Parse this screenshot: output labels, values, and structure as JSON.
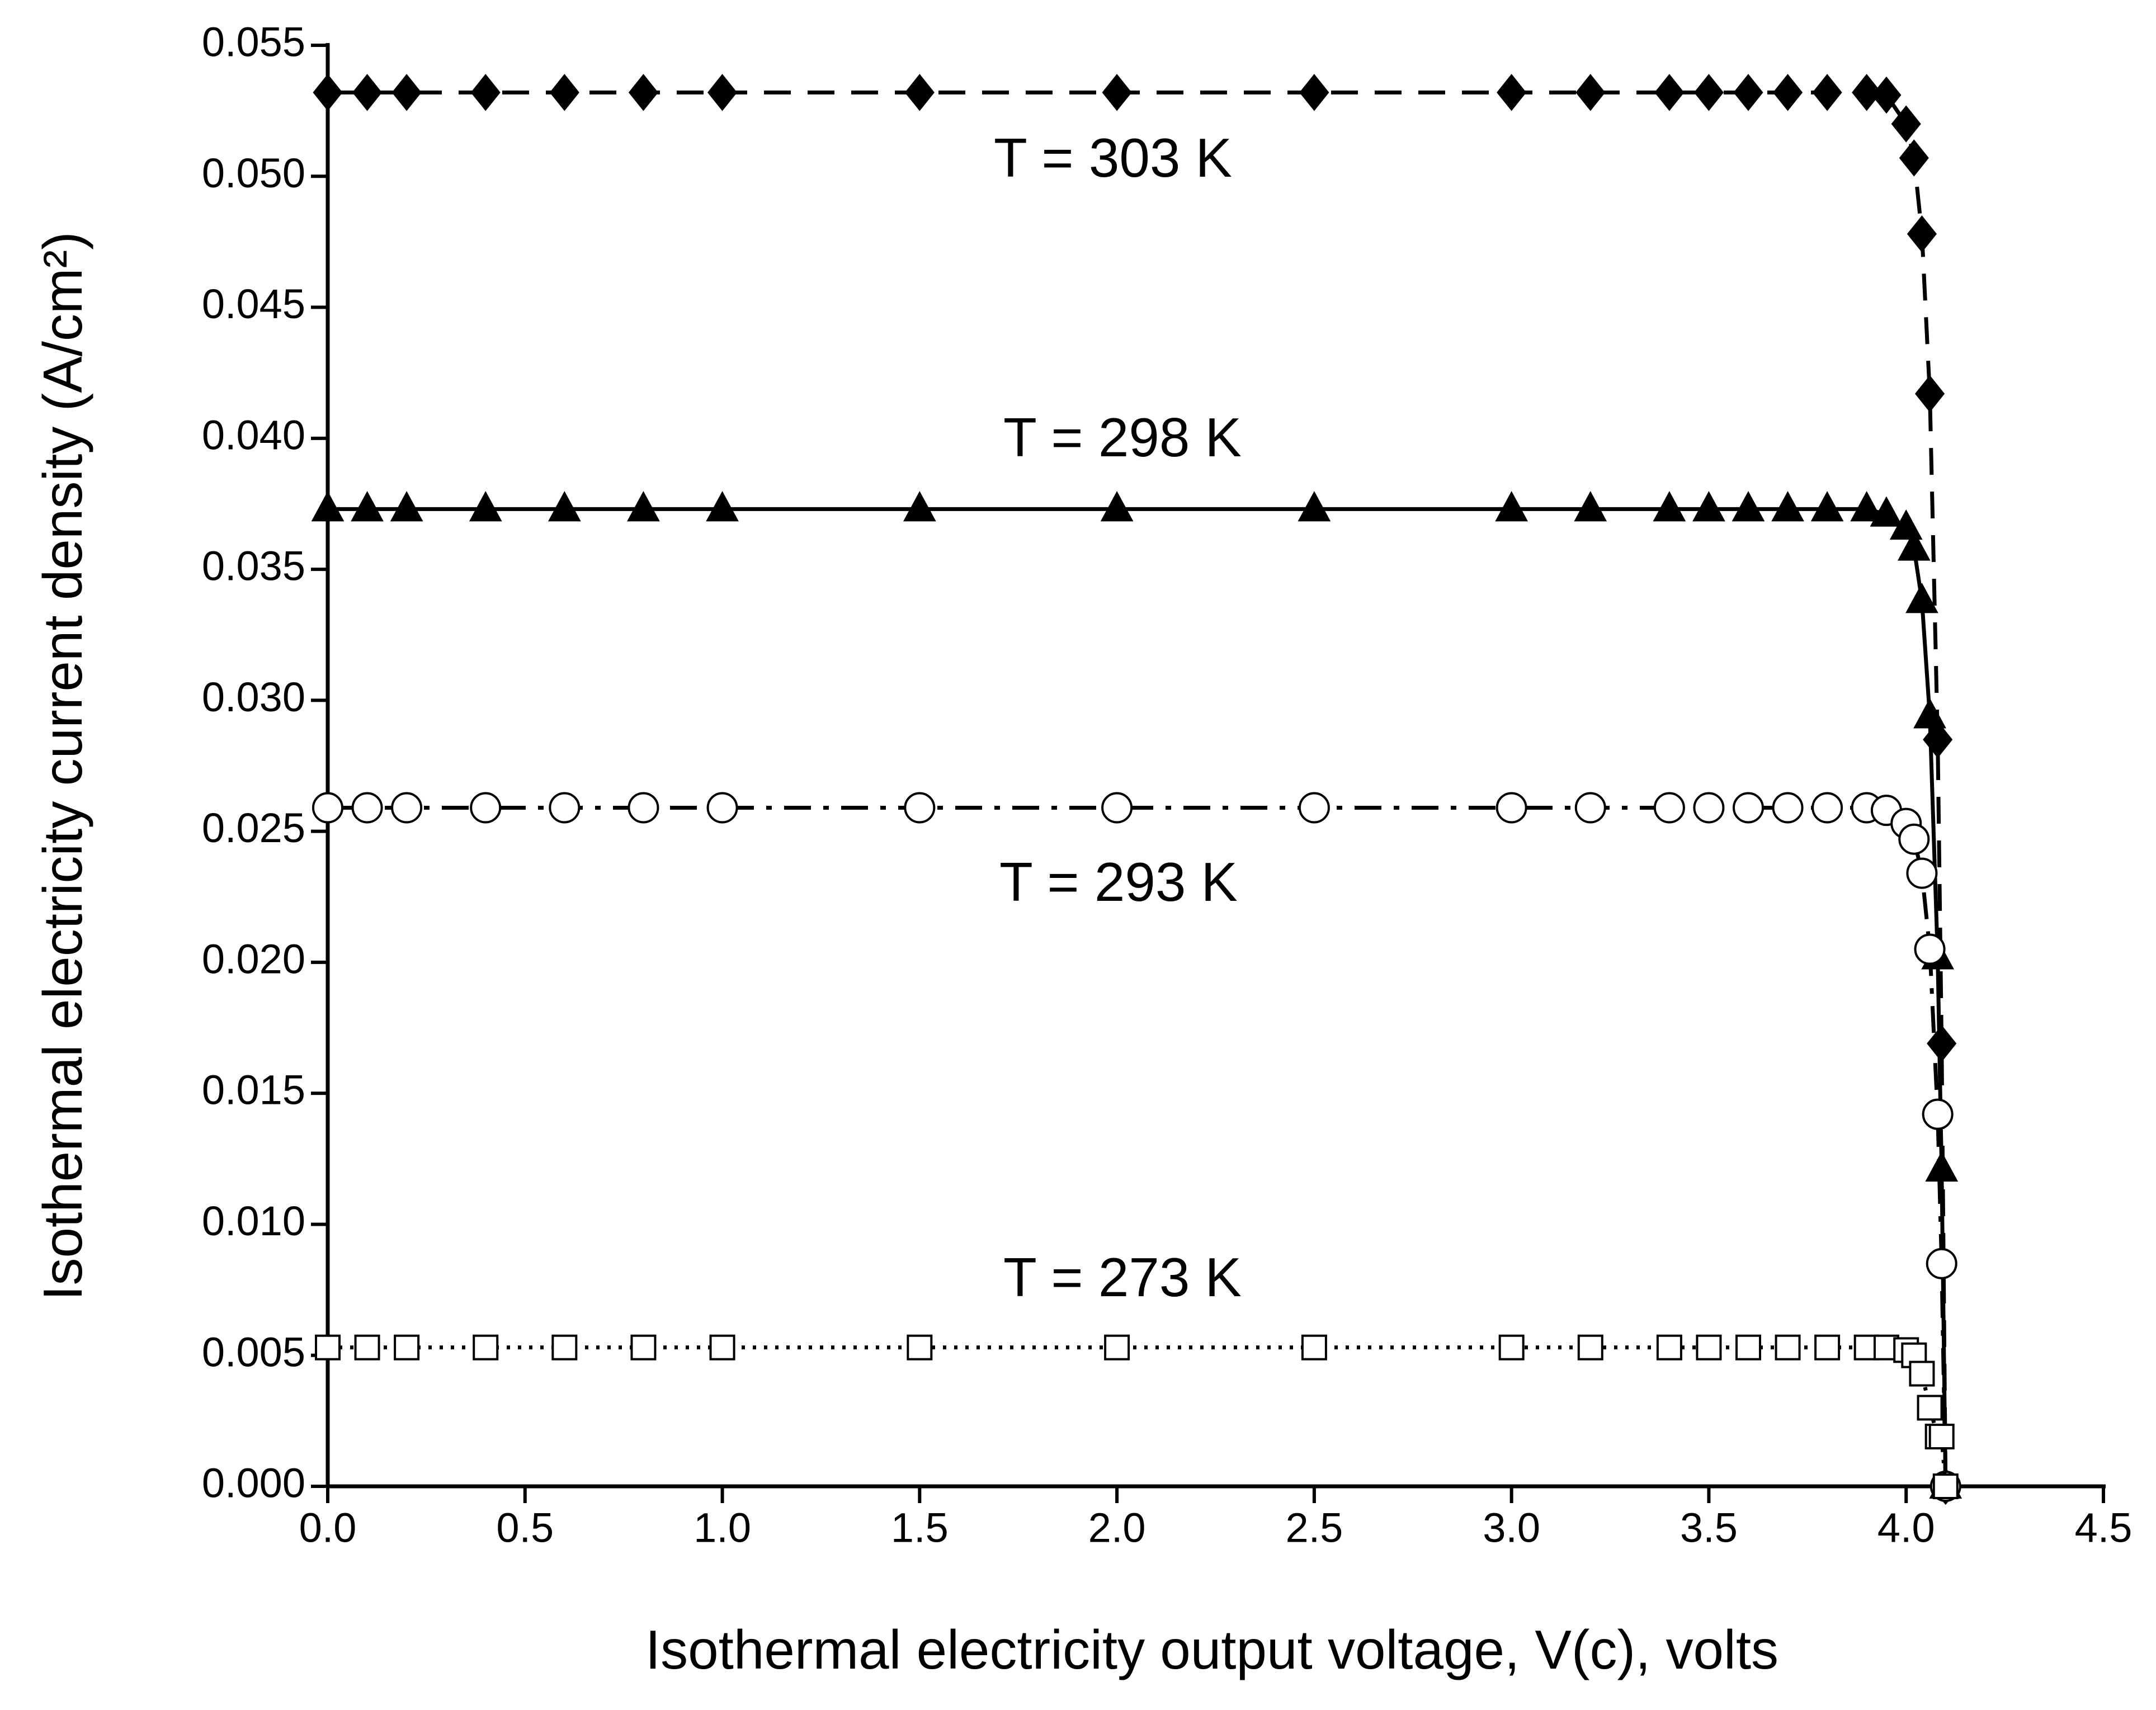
{
  "chart_data": {
    "type": "line",
    "xlabel": "Isothermal electricity output voltage, V(c), volts",
    "ylabel": "Isothermal electricity current density (A/cm²)",
    "annotations": [
      "T = 303 K",
      "T = 298 K",
      "T = 293 K",
      "T = 273 K"
    ],
    "x": [
      0,
      0.1,
      0.2,
      0.4,
      0.6,
      0.8,
      1.0,
      1.5,
      2.0,
      2.5,
      3.0,
      3.2,
      3.4,
      3.5,
      3.6,
      3.7,
      3.8,
      3.9,
      3.95,
      4.0,
      4.02,
      4.04,
      4.06,
      4.08,
      4.09,
      4.1
    ],
    "series": [
      {
        "color": "#000000",
        "marker": "diamond",
        "filled": true,
        "dash": "dash",
        "values": [
          0.0532,
          0.0532,
          0.0532,
          0.0532,
          0.0532,
          0.0532,
          0.0532,
          0.0532,
          0.0532,
          0.0532,
          0.0532,
          0.0532,
          0.0532,
          0.0532,
          0.0532,
          0.0532,
          0.0532,
          0.0532,
          0.0531,
          0.052,
          0.0507,
          0.0478,
          0.0417,
          0.0285,
          0.0169,
          0.0
        ]
      },
      {
        "color": "#000000",
        "marker": "triangle",
        "filled": true,
        "dash": "solid",
        "values": [
          0.0373,
          0.0373,
          0.0373,
          0.0373,
          0.0373,
          0.0373,
          0.0373,
          0.0373,
          0.0373,
          0.0373,
          0.0373,
          0.0373,
          0.0373,
          0.0373,
          0.0373,
          0.0373,
          0.0373,
          0.0373,
          0.0371,
          0.0366,
          0.0358,
          0.0338,
          0.0294,
          0.0202,
          0.0121,
          0.0
        ]
      },
      {
        "color": "#000000",
        "marker": "circle",
        "filled": false,
        "dash": "dashdot",
        "values": [
          0.0259,
          0.0259,
          0.0259,
          0.0259,
          0.0259,
          0.0259,
          0.0259,
          0.0259,
          0.0259,
          0.0259,
          0.0259,
          0.0259,
          0.0259,
          0.0259,
          0.0259,
          0.0259,
          0.0259,
          0.0259,
          0.0258,
          0.0253,
          0.0247,
          0.0234,
          0.0205,
          0.0142,
          0.0085,
          0.0
        ]
      },
      {
        "color": "#000000",
        "marker": "square",
        "filled": false,
        "dash": "dot",
        "values": [
          0.0053,
          0.0053,
          0.0053,
          0.0053,
          0.0053,
          0.0053,
          0.0053,
          0.0053,
          0.0053,
          0.0053,
          0.0053,
          0.0053,
          0.0053,
          0.0053,
          0.0053,
          0.0053,
          0.0053,
          0.0053,
          0.0053,
          0.0052,
          0.005,
          0.0043,
          0.003,
          0.0019,
          0.0019,
          0.0
        ]
      }
    ],
    "xlim": [
      0,
      4.5
    ],
    "xticks": [
      {
        "value": 0,
        "label": "0.0"
      },
      0.5,
      {
        "value": 1,
        "label": "1.0"
      },
      1.5,
      {
        "value": 2,
        "label": "2.0"
      },
      2.5,
      {
        "value": 3,
        "label": "3.0"
      },
      3.5,
      {
        "value": 4,
        "label": "4.0"
      },
      4.5
    ],
    "ylim": [
      0,
      0.055
    ],
    "yticks": [
      {
        "value": 0,
        "label": "0.000"
      },
      0.005,
      {
        "value": 0.01,
        "label": "0.010"
      },
      0.015,
      {
        "value": 0.02,
        "label": "0.020"
      },
      0.025,
      {
        "value": 0.03,
        "label": "0.030"
      },
      0.035,
      {
        "value": 0.04,
        "label": "0.040"
      },
      0.045,
      {
        "value": 0.05,
        "label": "0.050"
      },
      0.055
    ]
  }
}
